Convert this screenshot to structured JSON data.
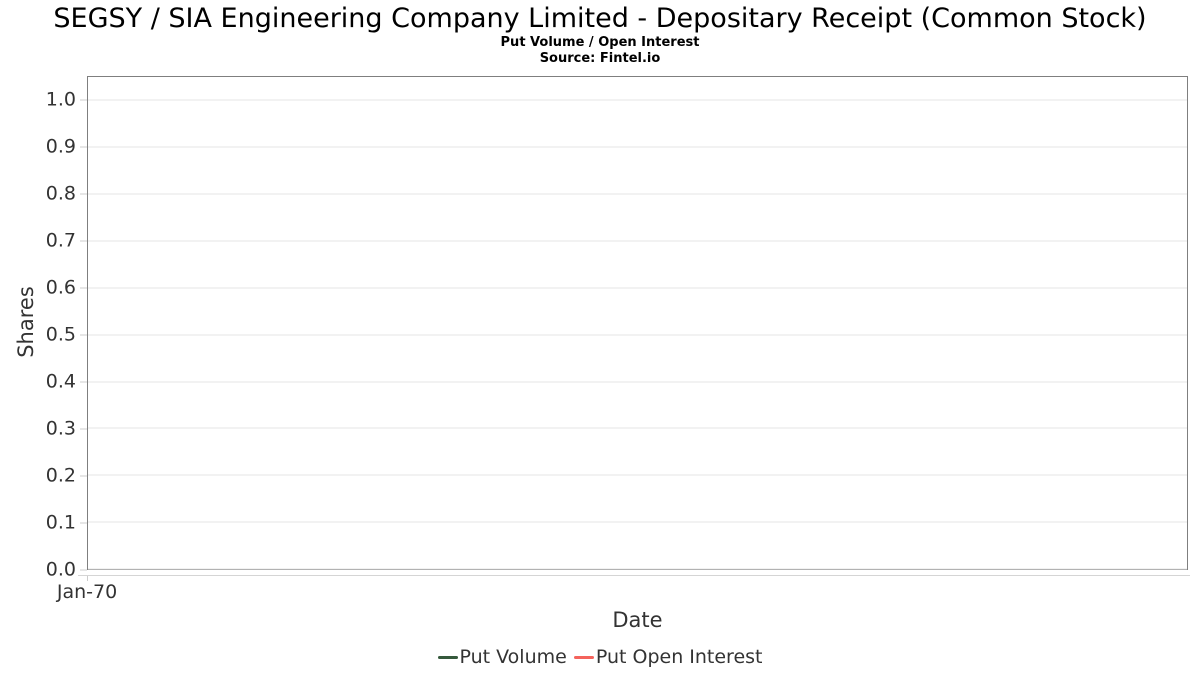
{
  "header": {
    "title": "SEGSY / SIA Engineering Company Limited - Depositary Receipt (Common Stock)",
    "subtitle": "Put Volume / Open Interest",
    "source": "Source: Fintel.io"
  },
  "chart_data": {
    "type": "line",
    "title": "SEGSY / SIA Engineering Company Limited - Depositary Receipt (Common Stock)",
    "subtitle": "Put Volume / Open Interest",
    "source": "Source: Fintel.io",
    "xlabel": "Date",
    "ylabel": "Shares",
    "x_tick_labels": [
      "Jan-70"
    ],
    "y_ticks": [
      0.0,
      0.1,
      0.2,
      0.3,
      0.4,
      0.5,
      0.6,
      0.7,
      0.8,
      0.9,
      1.0
    ],
    "ylim": [
      0,
      1.05
    ],
    "grid": true,
    "legend_position": "bottom",
    "series": [
      {
        "name": "Put Volume",
        "color": "#35593c",
        "values": []
      },
      {
        "name": "Put Open Interest",
        "color": "#f4635c",
        "values": []
      }
    ]
  },
  "colors": {
    "gridline": "#e6e6e6",
    "plot_border": "#7f7f7f",
    "axis_line": "#d5d5d5",
    "tick_mark": "#cccccc",
    "label_text": "#333333",
    "title_text": "#000000"
  }
}
